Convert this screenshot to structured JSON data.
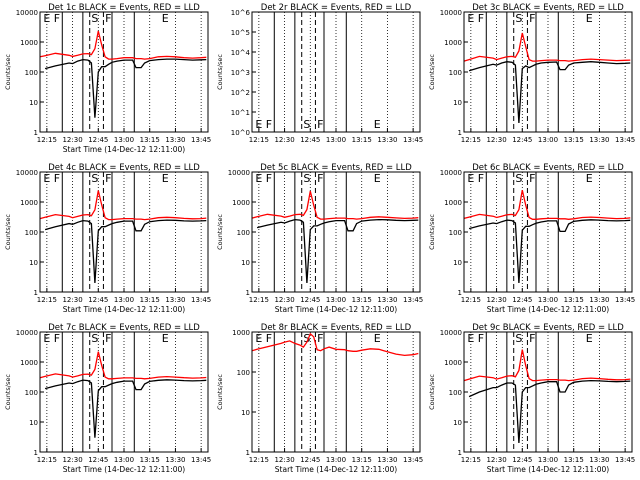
{
  "figure": {
    "time_tick_labels": [
      "12:15",
      "12:30",
      "12:45",
      "13:00",
      "13:15",
      "13:30",
      "13:45"
    ],
    "colors": {
      "events": "#000000",
      "lld": "#ff0000",
      "axes": "#000000",
      "background": "#ffffff"
    }
  },
  "chart_data": [
    {
      "type": "line",
      "title": "Det 1c BLACK = Events, RED = LLD",
      "xlabel": "Start Time (14-Dec-12 12:11:00)",
      "ylabel": "Counts/sec",
      "x_ticks": [
        "12:15",
        "12:30",
        "12:45",
        "13:00",
        "13:15",
        "13:30",
        "13:45"
      ],
      "y_scale": "log",
      "ylim": [
        1,
        10000
      ],
      "y_ticks": [
        "1",
        "10",
        "100",
        "1000",
        "10000"
      ],
      "region_labels": [
        "E",
        "F",
        "S",
        "F",
        "E"
      ],
      "x": [
        "12:11",
        "12:14",
        "12:20",
        "12:28",
        "12:30",
        "12:33",
        "12:36",
        "12:39",
        "12:41",
        "12:43",
        "12:45",
        "12:47",
        "12:49",
        "12:51",
        "12:53",
        "12:56",
        "13:00",
        "13:05",
        "13:07",
        "13:10",
        "13:12",
        "13:15",
        "13:20",
        "13:25",
        "13:30",
        "13:35",
        "13:40",
        "13:45",
        "13:48"
      ],
      "series": [
        {
          "name": "Events",
          "values": [
            null,
            130,
            160,
            200,
            190,
            230,
            260,
            250,
            200,
            3,
            100,
            150,
            150,
            180,
            210,
            230,
            250,
            250,
            140,
            140,
            200,
            240,
            260,
            270,
            270,
            260,
            250,
            255,
            260
          ]
        },
        {
          "name": "LLD",
          "values": [
            320,
            350,
            420,
            360,
            330,
            360,
            400,
            410,
            380,
            600,
            2300,
            800,
            320,
            270,
            270,
            280,
            300,
            300,
            280,
            280,
            270,
            280,
            320,
            330,
            320,
            300,
            290,
            300,
            310
          ]
        }
      ]
    },
    {
      "type": "line",
      "title": "Det 2r BLACK = Events, RED = LLD",
      "xlabel": "",
      "ylabel": "Counts/sec",
      "x_ticks": [
        "12:15",
        "12:30",
        "12:45",
        "13:00",
        "13:15",
        "13:30",
        "13:45"
      ],
      "y_scale": "log",
      "ylim": [
        1,
        1000000
      ],
      "y_ticks": [
        "10^0",
        "10^1",
        "10^2",
        "10^3",
        "10^4",
        "10^5",
        "10^6"
      ],
      "region_labels": [
        "E",
        "F",
        "S",
        "F",
        "E"
      ],
      "x": [],
      "series": []
    },
    {
      "type": "line",
      "title": "Det 3c BLACK = Events, RED = LLD",
      "xlabel": "",
      "ylabel": "Counts/sec",
      "x_ticks": [
        "12:15",
        "12:30",
        "12:45",
        "13:00",
        "13:15",
        "13:30",
        "13:45"
      ],
      "y_scale": "log",
      "ylim": [
        1,
        10000
      ],
      "y_ticks": [
        "1",
        "10",
        "100",
        "1000",
        "10000"
      ],
      "region_labels": [
        "E",
        "F",
        "S",
        "F",
        "E"
      ],
      "x": [
        "12:11",
        "12:14",
        "12:20",
        "12:28",
        "12:30",
        "12:33",
        "12:36",
        "12:39",
        "12:41",
        "12:43",
        "12:45",
        "12:47",
        "12:49",
        "12:51",
        "12:53",
        "12:56",
        "13:00",
        "13:05",
        "13:07",
        "13:10",
        "13:12",
        "13:15",
        "13:20",
        "13:25",
        "13:30",
        "13:35",
        "13:40",
        "13:45",
        "13:48"
      ],
      "series": [
        {
          "name": "Events",
          "values": [
            null,
            110,
            140,
            180,
            170,
            200,
            220,
            210,
            170,
            2,
            130,
            160,
            140,
            160,
            180,
            200,
            210,
            215,
            120,
            120,
            170,
            200,
            210,
            220,
            210,
            200,
            190,
            195,
            200
          ]
        },
        {
          "name": "LLD",
          "values": [
            230,
            260,
            330,
            290,
            260,
            290,
            320,
            330,
            310,
            500,
            2000,
            700,
            260,
            230,
            230,
            240,
            250,
            250,
            240,
            240,
            230,
            240,
            260,
            270,
            260,
            250,
            240,
            245,
            250
          ]
        }
      ]
    },
    {
      "type": "line",
      "title": "Det 4c BLACK = Events, RED = LLD",
      "xlabel": "Start Time (14-Dec-12 12:11:00)",
      "ylabel": "Counts/sec",
      "x_ticks": [
        "12:15",
        "12:30",
        "12:45",
        "13:00",
        "13:15",
        "13:30",
        "13:45"
      ],
      "y_scale": "log",
      "ylim": [
        1,
        10000
      ],
      "y_ticks": [
        "1",
        "10",
        "100",
        "1000",
        "10000"
      ],
      "region_labels": [
        "E",
        "F",
        "S",
        "F",
        "E"
      ],
      "x": [
        "12:11",
        "12:14",
        "12:20",
        "12:28",
        "12:30",
        "12:33",
        "12:36",
        "12:39",
        "12:41",
        "12:43",
        "12:45",
        "12:47",
        "12:49",
        "12:51",
        "12:53",
        "12:56",
        "13:00",
        "13:05",
        "13:07",
        "13:10",
        "13:12",
        "13:15",
        "13:20",
        "13:25",
        "13:30",
        "13:35",
        "13:40",
        "13:45",
        "13:48"
      ],
      "series": [
        {
          "name": "Events",
          "values": [
            null,
            120,
            150,
            190,
            180,
            210,
            240,
            230,
            190,
            2,
            110,
            150,
            150,
            170,
            190,
            210,
            230,
            230,
            110,
            110,
            180,
            220,
            240,
            250,
            245,
            235,
            230,
            235,
            240
          ]
        },
        {
          "name": "LLD",
          "values": [
            280,
            310,
            380,
            330,
            300,
            330,
            370,
            380,
            350,
            550,
            2400,
            800,
            300,
            260,
            260,
            270,
            280,
            280,
            270,
            270,
            260,
            270,
            300,
            310,
            300,
            285,
            275,
            280,
            290
          ]
        }
      ]
    },
    {
      "type": "line",
      "title": "Det 5c BLACK = Events, RED = LLD",
      "xlabel": "Start Time (14-Dec-12 12:11:00)",
      "ylabel": "Counts/sec",
      "x_ticks": [
        "12:15",
        "12:30",
        "12:45",
        "13:00",
        "13:15",
        "13:30",
        "13:45"
      ],
      "y_scale": "log",
      "ylim": [
        1,
        10000
      ],
      "y_ticks": [
        "1",
        "10",
        "100",
        "1000",
        "10000"
      ],
      "region_labels": [
        "E",
        "F",
        "S",
        "F",
        "E"
      ],
      "x": [
        "12:11",
        "12:14",
        "12:20",
        "12:28",
        "12:30",
        "12:33",
        "12:36",
        "12:39",
        "12:41",
        "12:43",
        "12:45",
        "12:47",
        "12:49",
        "12:51",
        "12:53",
        "12:56",
        "13:00",
        "13:05",
        "13:07",
        "13:10",
        "13:12",
        "13:15",
        "13:20",
        "13:25",
        "13:30",
        "13:35",
        "13:40",
        "13:45",
        "13:48"
      ],
      "series": [
        {
          "name": "Events",
          "values": [
            null,
            140,
            170,
            210,
            200,
            230,
            260,
            250,
            210,
            2,
            120,
            160,
            160,
            180,
            200,
            220,
            240,
            240,
            110,
            110,
            190,
            230,
            250,
            260,
            255,
            245,
            240,
            245,
            250
          ]
        },
        {
          "name": "LLD",
          "values": [
            290,
            320,
            390,
            340,
            310,
            340,
            380,
            390,
            360,
            560,
            2300,
            780,
            310,
            270,
            270,
            280,
            290,
            290,
            280,
            280,
            270,
            280,
            310,
            320,
            310,
            295,
            285,
            290,
            300
          ]
        }
      ]
    },
    {
      "type": "line",
      "title": "Det 6c BLACK = Events, RED = LLD",
      "xlabel": "Start Time (14-Dec-12 12:11:00)",
      "ylabel": "Counts/sec",
      "x_ticks": [
        "12:15",
        "12:30",
        "12:45",
        "13:00",
        "13:15",
        "13:30",
        "13:45"
      ],
      "y_scale": "log",
      "ylim": [
        1,
        10000
      ],
      "y_ticks": [
        "1",
        "10",
        "100",
        "1000",
        "10000"
      ],
      "region_labels": [
        "E",
        "F",
        "S",
        "F",
        "E"
      ],
      "x": [
        "12:11",
        "12:14",
        "12:20",
        "12:28",
        "12:30",
        "12:33",
        "12:36",
        "12:39",
        "12:41",
        "12:43",
        "12:45",
        "12:47",
        "12:49",
        "12:51",
        "12:53",
        "12:56",
        "13:00",
        "13:05",
        "13:07",
        "13:10",
        "13:12",
        "13:15",
        "13:20",
        "13:25",
        "13:30",
        "13:35",
        "13:40",
        "13:45",
        "13:48"
      ],
      "series": [
        {
          "name": "Events",
          "values": [
            null,
            130,
            160,
            200,
            190,
            220,
            250,
            240,
            200,
            2,
            115,
            155,
            155,
            175,
            195,
            215,
            235,
            235,
            105,
            105,
            185,
            225,
            245,
            255,
            250,
            240,
            235,
            240,
            245
          ]
        },
        {
          "name": "LLD",
          "values": [
            285,
            315,
            385,
            335,
            305,
            335,
            375,
            385,
            355,
            555,
            2500,
            790,
            305,
            265,
            265,
            275,
            285,
            285,
            275,
            275,
            265,
            275,
            305,
            315,
            305,
            290,
            280,
            285,
            295
          ]
        }
      ]
    },
    {
      "type": "line",
      "title": "Det 7c BLACK = Events, RED = LLD",
      "xlabel": "Start Time (14-Dec-12 12:11:00)",
      "ylabel": "Counts/sec",
      "x_ticks": [
        "12:15",
        "12:30",
        "12:45",
        "13:00",
        "13:15",
        "13:30",
        "13:45"
      ],
      "y_scale": "log",
      "ylim": [
        1,
        10000
      ],
      "y_ticks": [
        "1",
        "10",
        "100",
        "1000",
        "10000"
      ],
      "region_labels": [
        "E",
        "F",
        "S",
        "F",
        "E"
      ],
      "x": [
        "12:11",
        "12:14",
        "12:20",
        "12:28",
        "12:30",
        "12:33",
        "12:36",
        "12:39",
        "12:41",
        "12:43",
        "12:45",
        "12:47",
        "12:49",
        "12:51",
        "12:53",
        "12:56",
        "13:00",
        "13:05",
        "13:07",
        "13:10",
        "13:12",
        "13:15",
        "13:20",
        "13:25",
        "13:30",
        "13:35",
        "13:40",
        "13:45",
        "13:48"
      ],
      "series": [
        {
          "name": "Events",
          "values": [
            null,
            130,
            160,
            200,
            190,
            220,
            250,
            240,
            200,
            3,
            110,
            150,
            150,
            170,
            190,
            210,
            230,
            230,
            120,
            120,
            185,
            225,
            245,
            255,
            250,
            240,
            235,
            240,
            245
          ]
        },
        {
          "name": "LLD",
          "values": [
            300,
            330,
            400,
            345,
            315,
            345,
            385,
            395,
            365,
            565,
            2200,
            770,
            315,
            275,
            275,
            285,
            295,
            295,
            285,
            285,
            275,
            285,
            315,
            325,
            315,
            300,
            290,
            295,
            305
          ]
        }
      ]
    },
    {
      "type": "line",
      "title": "Det 8r BLACK = Events, RED = LLD",
      "xlabel": "Start Time (14-Dec-12 12:11:00)",
      "ylabel": "Counts/sec",
      "x_ticks": [
        "12:15",
        "12:30",
        "12:45",
        "13:00",
        "13:15",
        "13:30",
        "13:45"
      ],
      "y_scale": "log",
      "ylim": [
        1,
        1000
      ],
      "y_ticks": [
        "1",
        "10",
        "100",
        "1000"
      ],
      "region_labels": [
        "E",
        "F",
        "S",
        "F",
        "E"
      ],
      "x": [
        "12:11",
        "12:14",
        "12:20",
        "12:28",
        "12:30",
        "12:33",
        "12:36",
        "12:39",
        "12:41",
        "12:43",
        "12:45",
        "12:47",
        "12:49",
        "12:51",
        "12:53",
        "12:56",
        "13:00",
        "13:05",
        "13:07",
        "13:10",
        "13:12",
        "13:15",
        "13:20",
        "13:25",
        "13:30",
        "13:35",
        "13:40",
        "13:45",
        "13:48"
      ],
      "series": [
        {
          "name": "LLD",
          "values": [
            340,
            370,
            430,
            520,
            560,
            600,
            520,
            470,
            420,
            560,
            900,
            760,
            360,
            340,
            380,
            420,
            370,
            360,
            340,
            330,
            330,
            350,
            380,
            370,
            320,
            280,
            260,
            270,
            290
          ]
        }
      ]
    },
    {
      "type": "line",
      "title": "Det 9c BLACK = Events, RED = LLD",
      "xlabel": "Start Time (14-Dec-12 12:11:00)",
      "ylabel": "Counts/sec",
      "x_ticks": [
        "12:15",
        "12:30",
        "12:45",
        "13:00",
        "13:15",
        "13:30",
        "13:45"
      ],
      "y_scale": "log",
      "ylim": [
        1,
        10000
      ],
      "y_ticks": [
        "1",
        "10",
        "100",
        "1000",
        "10000"
      ],
      "region_labels": [
        "E",
        "F",
        "S",
        "F",
        "E"
      ],
      "x": [
        "12:11",
        "12:14",
        "12:20",
        "12:28",
        "12:30",
        "12:33",
        "12:36",
        "12:39",
        "12:41",
        "12:43",
        "12:45",
        "12:47",
        "12:49",
        "12:51",
        "12:53",
        "12:56",
        "13:00",
        "13:05",
        "13:07",
        "13:10",
        "13:12",
        "13:15",
        "13:20",
        "13:25",
        "13:30",
        "13:35",
        "13:40",
        "13:45",
        "13:48"
      ],
      "series": [
        {
          "name": "Events",
          "values": [
            null,
            70,
            100,
            140,
            140,
            170,
            200,
            200,
            170,
            2,
            100,
            140,
            140,
            160,
            180,
            200,
            220,
            220,
            100,
            100,
            170,
            210,
            230,
            240,
            235,
            225,
            220,
            225,
            230
          ]
        },
        {
          "name": "LLD",
          "values": [
            240,
            270,
            340,
            300,
            270,
            300,
            340,
            350,
            320,
            520,
            2600,
            760,
            280,
            240,
            240,
            250,
            260,
            260,
            250,
            250,
            240,
            250,
            280,
            290,
            280,
            265,
            255,
            260,
            270
          ]
        }
      ]
    }
  ]
}
